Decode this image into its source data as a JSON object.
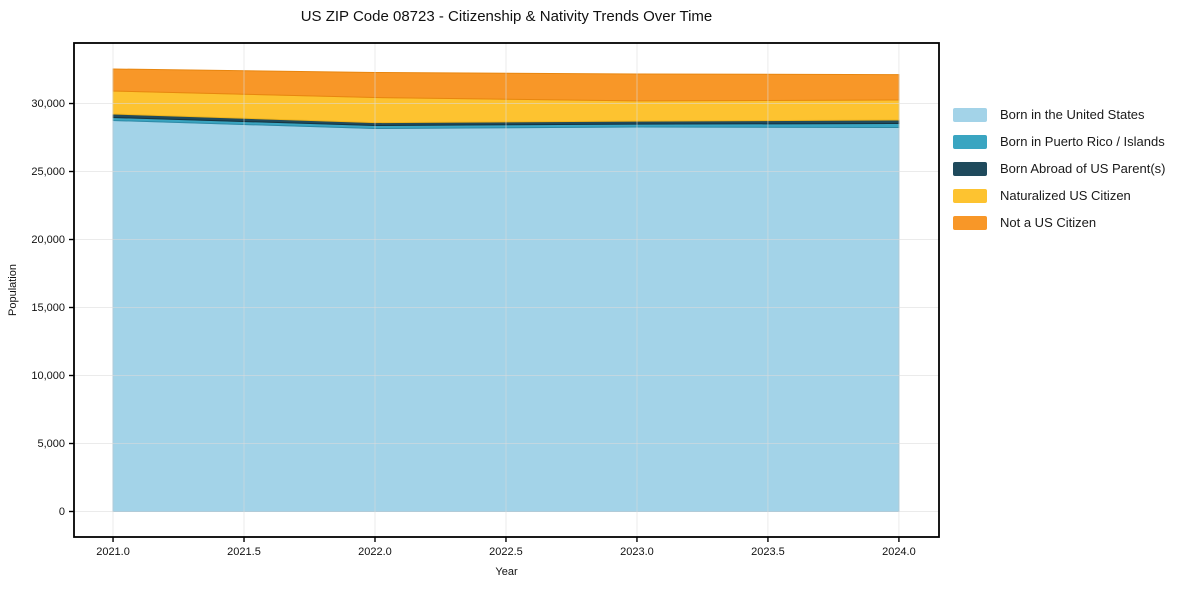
{
  "page": {
    "background": "#ffffff",
    "text_color": "#111111"
  },
  "chart_data": {
    "type": "area",
    "stacked": true,
    "title": "US ZIP Code 08723 - Citizenship & Nativity Trends Over Time",
    "xlabel": "Year",
    "ylabel": "Population",
    "x": [
      2021,
      2022,
      2023,
      2024
    ],
    "series": [
      {
        "name": "Born in the United States",
        "color": "#a3d3e8",
        "edge": "#7fb8d4",
        "values": [
          28750,
          28160,
          28270,
          28240
        ]
      },
      {
        "name": "Born in Puerto Rico / Islands",
        "color": "#3aa5c1",
        "edge": "#2e8aa6",
        "values": [
          220,
          220,
          220,
          290
        ]
      },
      {
        "name": "Born Abroad of US Parent(s)",
        "color": "#1f4a5c",
        "edge": "#16333f",
        "values": [
          260,
          220,
          220,
          260
        ]
      },
      {
        "name": "Naturalized US Citizen",
        "color": "#fdc330",
        "edge": "#edb31c",
        "values": [
          1690,
          1840,
          1480,
          1470
        ]
      },
      {
        "name": "Not a US Citizen",
        "color": "#f89728",
        "edge": "#e8860f",
        "values": [
          1620,
          1840,
          1980,
          1870
        ]
      }
    ],
    "xlim": [
      2020.851,
      2024.153
    ],
    "ylim": [
      -1875,
      34450
    ],
    "xticks": {
      "values": [
        2021.0,
        2021.5,
        2022.0,
        2022.5,
        2023.0,
        2023.5,
        2024.0
      ],
      "labels": [
        "2021.0",
        "2021.5",
        "2022.0",
        "2022.5",
        "2023.0",
        "2023.5",
        "2024.0"
      ]
    },
    "yticks": {
      "values": [
        0,
        5000,
        10000,
        15000,
        20000,
        25000,
        30000
      ],
      "labels": [
        "0",
        "5,000",
        "10,000",
        "15,000",
        "20,000",
        "25,000",
        "30,000"
      ]
    },
    "grid": true,
    "grid_color": "#dcdcdc",
    "spine_color": "#000000",
    "legend_position": "right"
  }
}
